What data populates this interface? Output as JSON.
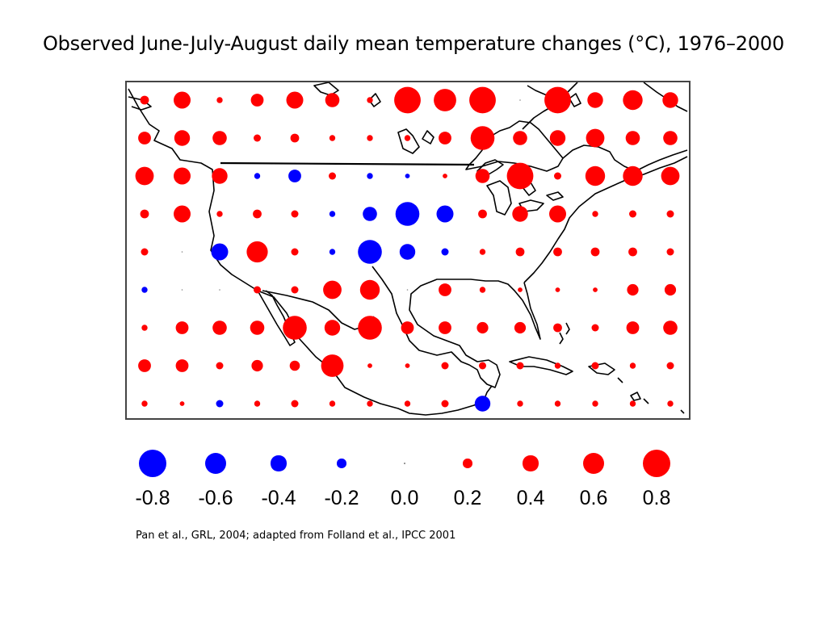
{
  "title": "Observed June-July-August daily mean temperature changes (°C), 1976–2000",
  "citation": "Pan et al., GRL, 2004; adapted from Folland et al.,  IPCC 2001",
  "colors": {
    "warming": "#ff0000",
    "cooling": "#0000ff",
    "coastline": "#000000"
  },
  "legend": [
    {
      "label": "-0.8",
      "value": -0.8
    },
    {
      "label": "-0.6",
      "value": -0.6
    },
    {
      "label": "-0.4",
      "value": -0.4
    },
    {
      "label": "-0.2",
      "value": -0.2
    },
    {
      "label": "0.0",
      "value": 0.0
    },
    {
      "label": "0.2",
      "value": 0.2
    },
    {
      "label": "0.4",
      "value": 0.4
    },
    {
      "label": "0.6",
      "value": 0.6
    },
    {
      "label": "0.8",
      "value": 0.8
    }
  ],
  "grid_values": [
    [
      0.2,
      0.5,
      0.1,
      0.35,
      0.5,
      0.4,
      0.1,
      0.85,
      0.7,
      0.85,
      0.0,
      0.85,
      0.45,
      0.6,
      0.45
    ],
    [
      0.35,
      0.45,
      0.4,
      0.15,
      0.2,
      0.1,
      0.1,
      0.1,
      0.35,
      0.75,
      0.4,
      0.45,
      0.55,
      0.4,
      0.4
    ],
    [
      0.55,
      0.5,
      0.45,
      -0.1,
      -0.35,
      0.15,
      -0.1,
      -0.05,
      0.05,
      0.4,
      0.85,
      0.15,
      0.6,
      0.6,
      0.55
    ],
    [
      0.2,
      0.5,
      0.1,
      0.2,
      0.15,
      -0.1,
      -0.4,
      -0.75,
      -0.5,
      0.2,
      0.45,
      0.5,
      0.1,
      0.15,
      0.15
    ],
    [
      0.15,
      0.0,
      -0.5,
      0.65,
      0.15,
      -0.1,
      -0.75,
      -0.45,
      -0.15,
      0.1,
      0.2,
      0.2,
      0.2,
      0.2,
      0.15
    ],
    [
      -0.1,
      0.0,
      0.0,
      0.15,
      0.15,
      0.55,
      0.6,
      0.0,
      0.35,
      0.1,
      0.05,
      0.05,
      0.05,
      0.3,
      0.3
    ],
    [
      0.1,
      0.35,
      0.4,
      0.4,
      0.75,
      0.45,
      0.75,
      0.35,
      0.35,
      0.3,
      0.3,
      0.2,
      0.15,
      0.35,
      0.4
    ],
    [
      0.35,
      0.35,
      0.15,
      0.3,
      0.25,
      0.7,
      0.05,
      0.05,
      0.15,
      0.15,
      0.15,
      0.1,
      0.15,
      0.1,
      0.15
    ],
    [
      0.1,
      0.05,
      -0.15,
      0.1,
      0.15,
      0.1,
      0.1,
      0.1,
      0.15,
      -0.45,
      0.1,
      0.1,
      0.1,
      0.1,
      0.1
    ]
  ]
}
